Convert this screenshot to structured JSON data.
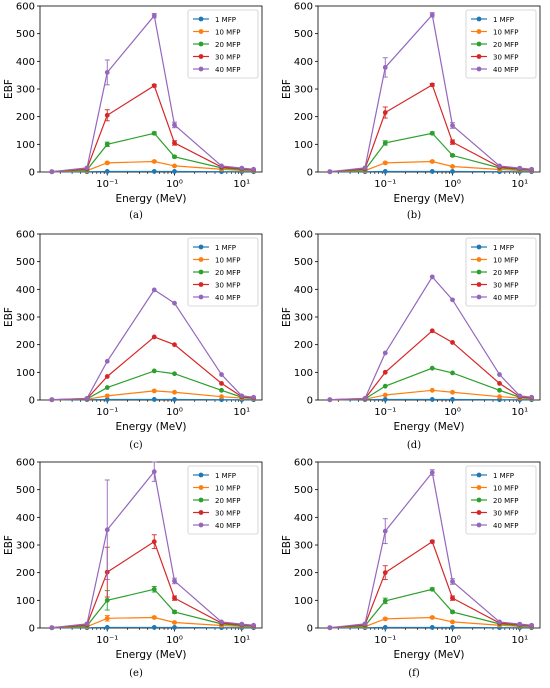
{
  "series_colors": {
    "1 MFP": "#1f77b4",
    "10 MFP": "#ff7f0e",
    "20 MFP": "#2ca02c",
    "30 MFP": "#d62728",
    "40 MFP": "#9467bd"
  },
  "chart_data": [
    {
      "type": "line",
      "caption": "(a)",
      "xlabel": "Energy (MeV)",
      "ylabel": "EBF",
      "xscale": "log",
      "xlim": [
        0.01,
        20
      ],
      "ylim": [
        0,
        600
      ],
      "yticks": [
        0,
        100,
        200,
        300,
        400,
        500,
        600
      ],
      "xticks": [
        {
          "value": 0.1,
          "label": "10⁻¹"
        },
        {
          "value": 1,
          "label": "10⁰"
        },
        {
          "value": 10,
          "label": "10¹"
        }
      ],
      "legend_position": "top-right",
      "grid": false,
      "x": [
        0.015,
        0.05,
        0.1,
        0.5,
        1,
        5,
        10,
        15
      ],
      "series": [
        {
          "name": "1 MFP",
          "values": [
            1,
            1,
            2,
            2,
            2,
            1,
            1,
            1
          ],
          "errors": [
            0,
            0,
            0,
            0,
            0,
            0,
            0,
            0
          ]
        },
        {
          "name": "10 MFP",
          "values": [
            1,
            5,
            33,
            38,
            22,
            10,
            6,
            5
          ],
          "errors": [
            0,
            0,
            3,
            3,
            2,
            0,
            0,
            0
          ]
        },
        {
          "name": "20 MFP",
          "values": [
            1,
            8,
            100,
            140,
            55,
            15,
            9,
            7
          ],
          "errors": [
            0,
            0,
            8,
            5,
            4,
            0,
            0,
            0
          ]
        },
        {
          "name": "30 MFP",
          "values": [
            1,
            12,
            205,
            312,
            105,
            18,
            12,
            8
          ],
          "errors": [
            0,
            0,
            20,
            5,
            8,
            0,
            0,
            0
          ]
        },
        {
          "name": "40 MFP",
          "values": [
            1,
            15,
            360,
            565,
            170,
            22,
            14,
            10
          ],
          "errors": [
            0,
            0,
            45,
            8,
            10,
            0,
            0,
            0
          ]
        }
      ]
    },
    {
      "type": "line",
      "caption": "(b)",
      "xlabel": "Energy (MeV)",
      "ylabel": "EBF",
      "xscale": "log",
      "xlim": [
        0.01,
        20
      ],
      "ylim": [
        0,
        600
      ],
      "yticks": [
        0,
        100,
        200,
        300,
        400,
        500,
        600
      ],
      "xticks": [
        {
          "value": 0.1,
          "label": "10⁻¹"
        },
        {
          "value": 1,
          "label": "10⁰"
        },
        {
          "value": 10,
          "label": "10¹"
        }
      ],
      "legend_position": "top-right",
      "grid": false,
      "x": [
        0.015,
        0.05,
        0.1,
        0.5,
        1,
        5,
        10,
        15
      ],
      "series": [
        {
          "name": "1 MFP",
          "values": [
            1,
            1,
            2,
            2,
            2,
            1,
            1,
            1
          ],
          "errors": [
            0,
            0,
            0,
            0,
            0,
            0,
            0,
            0
          ]
        },
        {
          "name": "10 MFP",
          "values": [
            1,
            5,
            33,
            38,
            20,
            9,
            6,
            5
          ],
          "errors": [
            0,
            0,
            3,
            3,
            2,
            0,
            0,
            0
          ]
        },
        {
          "name": "20 MFP",
          "values": [
            1,
            8,
            105,
            140,
            60,
            15,
            9,
            7
          ],
          "errors": [
            0,
            0,
            8,
            5,
            4,
            0,
            0,
            0
          ]
        },
        {
          "name": "30 MFP",
          "values": [
            1,
            12,
            215,
            315,
            108,
            18,
            12,
            8
          ],
          "errors": [
            0,
            0,
            20,
            5,
            8,
            0,
            0,
            0
          ]
        },
        {
          "name": "40 MFP",
          "values": [
            1,
            15,
            378,
            568,
            168,
            22,
            14,
            10
          ],
          "errors": [
            0,
            0,
            35,
            8,
            10,
            0,
            0,
            0
          ]
        }
      ]
    },
    {
      "type": "line",
      "caption": "(c)",
      "xlabel": "Energy (MeV)",
      "ylabel": "EBF",
      "xscale": "log",
      "xlim": [
        0.01,
        20
      ],
      "ylim": [
        0,
        600
      ],
      "yticks": [
        0,
        100,
        200,
        300,
        400,
        500,
        600
      ],
      "xticks": [
        {
          "value": 0.1,
          "label": "10⁻¹"
        },
        {
          "value": 1,
          "label": "10⁰"
        },
        {
          "value": 10,
          "label": "10¹"
        }
      ],
      "legend_position": "top-right",
      "grid": false,
      "x": [
        0.015,
        0.05,
        0.1,
        0.5,
        1,
        5,
        10,
        15
      ],
      "series": [
        {
          "name": "1 MFP",
          "values": [
            1,
            1,
            2,
            2,
            2,
            1,
            1,
            1
          ],
          "errors": [
            0,
            0,
            0,
            0,
            0,
            0,
            0,
            0
          ]
        },
        {
          "name": "10 MFP",
          "values": [
            1,
            3,
            15,
            33,
            28,
            12,
            7,
            5
          ],
          "errors": [
            0,
            0,
            0,
            0,
            0,
            0,
            0,
            0
          ]
        },
        {
          "name": "20 MFP",
          "values": [
            1,
            4,
            45,
            105,
            95,
            35,
            10,
            7
          ],
          "errors": [
            0,
            0,
            0,
            0,
            0,
            0,
            0,
            0
          ]
        },
        {
          "name": "30 MFP",
          "values": [
            1,
            5,
            85,
            228,
            200,
            60,
            12,
            8
          ],
          "errors": [
            0,
            0,
            0,
            0,
            0,
            0,
            0,
            0
          ]
        },
        {
          "name": "40 MFP",
          "values": [
            1,
            6,
            140,
            398,
            350,
            92,
            15,
            10
          ],
          "errors": [
            0,
            0,
            0,
            0,
            0,
            0,
            0,
            0
          ]
        }
      ]
    },
    {
      "type": "line",
      "caption": "(d)",
      "xlabel": "Energy (MeV)",
      "ylabel": "EBF",
      "xscale": "log",
      "xlim": [
        0.01,
        20
      ],
      "ylim": [
        0,
        600
      ],
      "yticks": [
        0,
        100,
        200,
        300,
        400,
        500,
        600
      ],
      "xticks": [
        {
          "value": 0.1,
          "label": "10⁻¹"
        },
        {
          "value": 1,
          "label": "10⁰"
        },
        {
          "value": 10,
          "label": "10¹"
        }
      ],
      "legend_position": "top-right",
      "grid": false,
      "x": [
        0.015,
        0.05,
        0.1,
        0.5,
        1,
        5,
        10,
        15
      ],
      "series": [
        {
          "name": "1 MFP",
          "values": [
            1,
            1,
            2,
            2,
            2,
            1,
            1,
            1
          ],
          "errors": [
            0,
            0,
            0,
            0,
            0,
            0,
            0,
            0
          ]
        },
        {
          "name": "10 MFP",
          "values": [
            1,
            3,
            18,
            35,
            28,
            12,
            7,
            5
          ],
          "errors": [
            0,
            0,
            0,
            0,
            0,
            0,
            0,
            0
          ]
        },
        {
          "name": "20 MFP",
          "values": [
            1,
            4,
            50,
            115,
            98,
            35,
            10,
            7
          ],
          "errors": [
            0,
            0,
            0,
            0,
            0,
            0,
            0,
            0
          ]
        },
        {
          "name": "30 MFP",
          "values": [
            1,
            5,
            100,
            250,
            208,
            60,
            12,
            8
          ],
          "errors": [
            0,
            0,
            0,
            0,
            0,
            0,
            0,
            0
          ]
        },
        {
          "name": "40 MFP",
          "values": [
            1,
            6,
            170,
            445,
            362,
            92,
            15,
            10
          ],
          "errors": [
            0,
            0,
            0,
            0,
            0,
            0,
            0,
            0
          ]
        }
      ]
    },
    {
      "type": "line",
      "caption": "(e)",
      "xlabel": "Energy (MeV)",
      "ylabel": "EBF",
      "xscale": "log",
      "xlim": [
        0.01,
        20
      ],
      "ylim": [
        0,
        600
      ],
      "yticks": [
        0,
        100,
        200,
        300,
        400,
        500,
        600
      ],
      "xticks": [
        {
          "value": 0.1,
          "label": "10⁻¹"
        },
        {
          "value": 1,
          "label": "10⁰"
        },
        {
          "value": 10,
          "label": "10¹"
        }
      ],
      "legend_position": "top-right",
      "grid": false,
      "x": [
        0.015,
        0.05,
        0.1,
        0.5,
        1,
        5,
        10,
        15
      ],
      "series": [
        {
          "name": "1 MFP",
          "values": [
            1,
            1,
            2,
            2,
            2,
            1,
            1,
            1
          ],
          "errors": [
            0,
            0,
            0,
            0,
            0,
            0,
            0,
            0
          ]
        },
        {
          "name": "10 MFP",
          "values": [
            1,
            5,
            35,
            38,
            20,
            9,
            6,
            5
          ],
          "errors": [
            0,
            0,
            10,
            3,
            2,
            0,
            0,
            0
          ]
        },
        {
          "name": "20 MFP",
          "values": [
            1,
            8,
            100,
            140,
            58,
            15,
            9,
            7
          ],
          "errors": [
            0,
            0,
            35,
            10,
            5,
            0,
            0,
            0
          ]
        },
        {
          "name": "30 MFP",
          "values": [
            1,
            12,
            202,
            312,
            108,
            18,
            12,
            8
          ],
          "errors": [
            0,
            0,
            90,
            25,
            8,
            0,
            0,
            0
          ]
        },
        {
          "name": "40 MFP",
          "values": [
            1,
            15,
            355,
            565,
            170,
            22,
            14,
            10
          ],
          "errors": [
            0,
            0,
            180,
            35,
            10,
            0,
            0,
            0
          ]
        }
      ]
    },
    {
      "type": "line",
      "caption": "(f)",
      "xlabel": "Energy (MeV)",
      "ylabel": "EBF",
      "xscale": "log",
      "xlim": [
        0.01,
        20
      ],
      "ylim": [
        0,
        600
      ],
      "yticks": [
        0,
        100,
        200,
        300,
        400,
        500,
        600
      ],
      "xticks": [
        {
          "value": 0.1,
          "label": "10⁻¹"
        },
        {
          "value": 1,
          "label": "10⁰"
        },
        {
          "value": 10,
          "label": "10¹"
        }
      ],
      "legend_position": "top-right",
      "grid": false,
      "x": [
        0.015,
        0.05,
        0.1,
        0.5,
        1,
        5,
        10,
        15
      ],
      "series": [
        {
          "name": "1 MFP",
          "values": [
            1,
            1,
            2,
            2,
            2,
            1,
            1,
            1
          ],
          "errors": [
            0,
            0,
            0,
            0,
            0,
            0,
            0,
            0
          ]
        },
        {
          "name": "10 MFP",
          "values": [
            1,
            5,
            33,
            38,
            22,
            10,
            6,
            5
          ],
          "errors": [
            0,
            0,
            3,
            3,
            2,
            0,
            0,
            0
          ]
        },
        {
          "name": "20 MFP",
          "values": [
            1,
            8,
            98,
            140,
            58,
            15,
            9,
            7
          ],
          "errors": [
            0,
            0,
            10,
            5,
            4,
            0,
            0,
            0
          ]
        },
        {
          "name": "30 MFP",
          "values": [
            1,
            12,
            200,
            312,
            108,
            18,
            12,
            8
          ],
          "errors": [
            0,
            0,
            25,
            5,
            8,
            0,
            0,
            0
          ]
        },
        {
          "name": "40 MFP",
          "values": [
            1,
            15,
            350,
            562,
            168,
            22,
            14,
            10
          ],
          "errors": [
            0,
            0,
            45,
            10,
            10,
            0,
            0,
            0
          ]
        }
      ]
    }
  ]
}
